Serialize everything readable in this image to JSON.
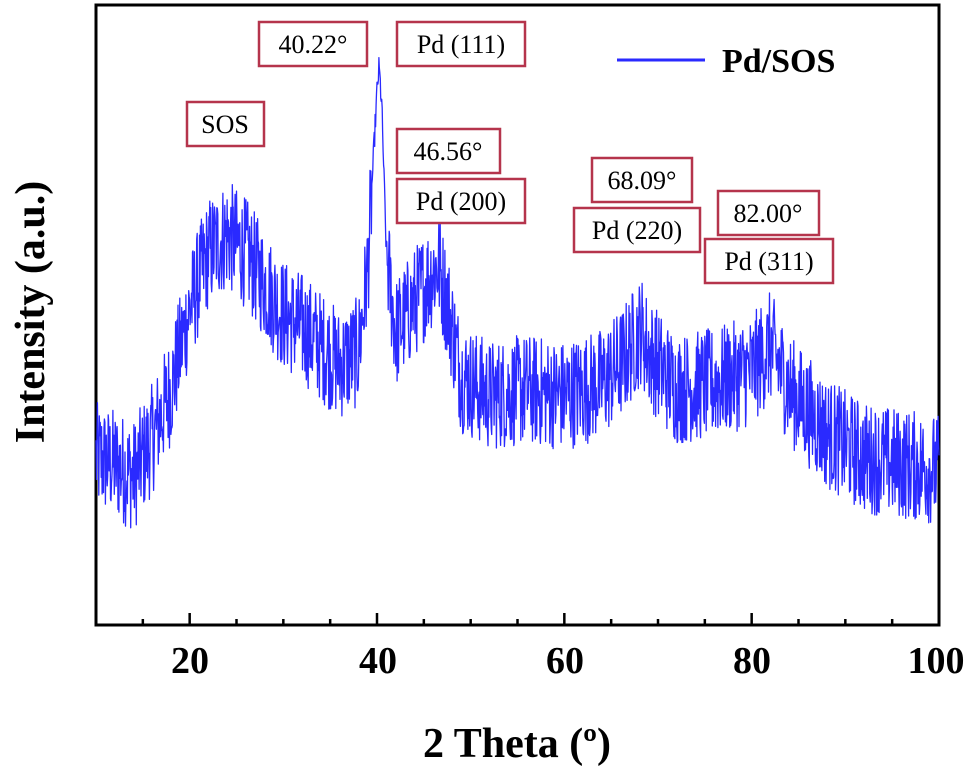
{
  "chart_data": {
    "type": "line",
    "xlabel": "2 Theta (º)",
    "ylabel": "Intensity (a.u.)",
    "xlim": [
      10,
      100
    ],
    "ylim": [
      0,
      100
    ],
    "x_ticks": [
      "20",
      "40",
      "60",
      "80",
      "100"
    ],
    "y_ticks_labeled": false,
    "grid": false,
    "legend": {
      "placement": "top-right",
      "entries": [
        "Pd/SOS"
      ]
    },
    "series": [
      {
        "name": "Pd/SOS",
        "color": "#2a2aff",
        "x": [
          10,
          12,
          14,
          16,
          18,
          20,
          22,
          24,
          26,
          28,
          30,
          32,
          34,
          36,
          38,
          39,
          39.6,
          40,
          40.22,
          40.5,
          41,
          42,
          44,
          46,
          46.56,
          47.5,
          49,
          52,
          56,
          60,
          64,
          66,
          68,
          68.09,
          69,
          72,
          76,
          80,
          82,
          84,
          88,
          92,
          96,
          100
        ],
        "y": [
          27,
          26,
          24,
          30,
          38,
          51,
          60,
          63,
          60,
          55,
          50,
          48,
          45,
          42,
          44,
          57,
          75,
          86,
          90,
          84,
          60,
          47,
          52,
          57,
          58,
          52,
          40,
          37,
          38,
          37,
          39,
          42,
          47,
          48,
          44,
          38,
          39,
          41,
          45,
          38,
          31,
          27,
          26,
          25
        ]
      }
    ],
    "annotations": [
      {
        "text": "SOS",
        "x": 23.5
      },
      {
        "text": "40.22°",
        "x": 40.22
      },
      {
        "text": "Pd (111)",
        "x": 40.22
      },
      {
        "text": "46.56°",
        "x": 46.56
      },
      {
        "text": "Pd (200)",
        "x": 46.56
      },
      {
        "text": "68.09°",
        "x": 68.09
      },
      {
        "text": "Pd (220)",
        "x": 68.09
      },
      {
        "text": "82.00°",
        "x": 82.0
      },
      {
        "text": "Pd (311)",
        "x": 82.0
      }
    ],
    "annotation_border_color": "#b5344c"
  }
}
